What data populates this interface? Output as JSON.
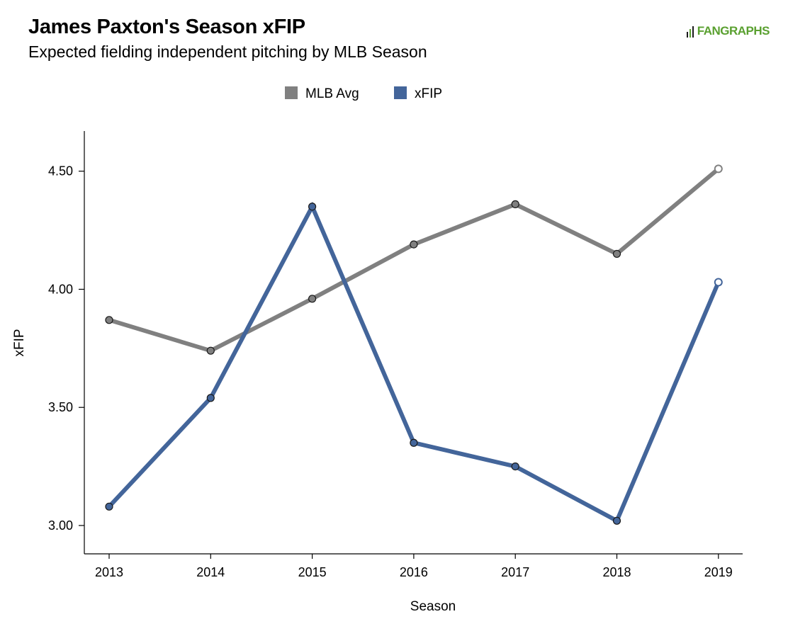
{
  "header": {
    "title": "James Paxton's Season xFIP",
    "subtitle": "Expected fielding independent pitching by MLB Season",
    "brand": "FANGRAPHS",
    "brand_color": "#5aa030"
  },
  "chart_data": {
    "type": "line",
    "xlabel": "Season",
    "ylabel": "xFIP",
    "categories": [
      "2013",
      "2014",
      "2015",
      "2016",
      "2017",
      "2018",
      "2019"
    ],
    "y_ticks": [
      "3.00",
      "3.50",
      "4.00",
      "4.50"
    ],
    "ylim": [
      2.88,
      4.67
    ],
    "legend_position": "top-center",
    "grid": false,
    "series": [
      {
        "name": "MLB Avg",
        "color": "#808080",
        "values": [
          3.87,
          3.74,
          3.96,
          4.19,
          4.36,
          4.15,
          4.51
        ],
        "last_point_open": true
      },
      {
        "name": "xFIP",
        "color": "#43659a",
        "values": [
          3.08,
          3.54,
          4.35,
          3.35,
          3.25,
          3.02,
          4.03
        ],
        "last_point_open": true
      }
    ]
  }
}
